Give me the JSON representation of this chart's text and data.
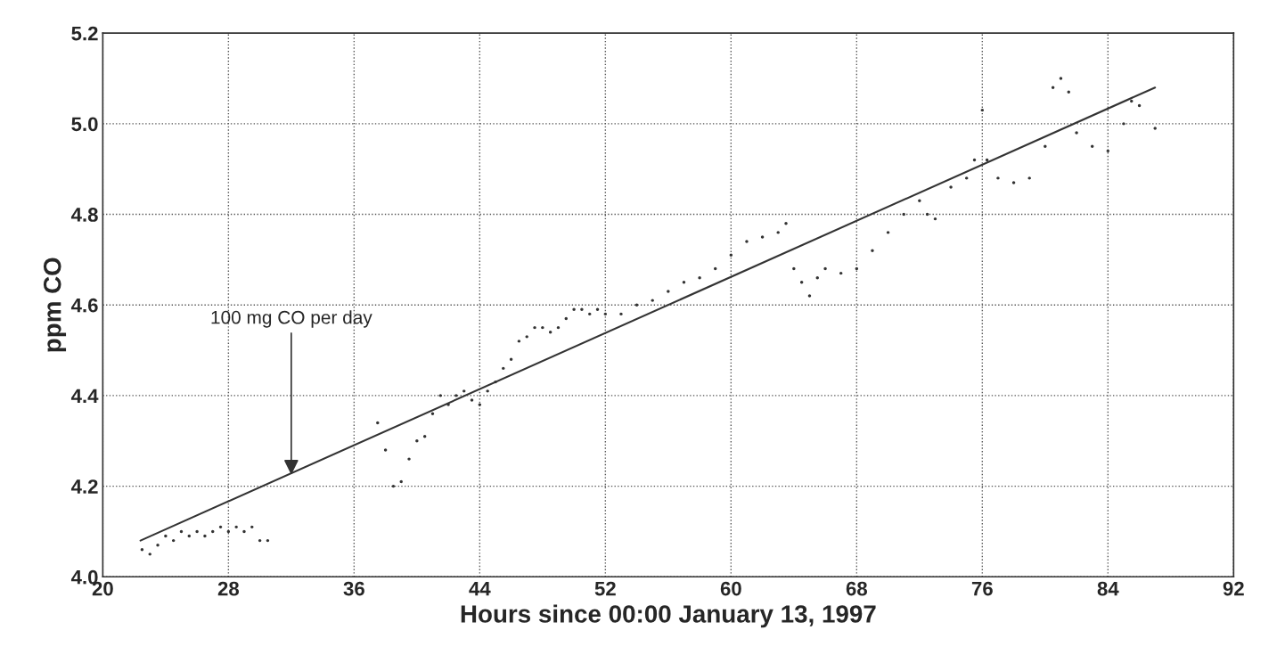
{
  "chart_data": {
    "type": "scatter",
    "xlabel": "Hours since 00:00 January 13, 1997",
    "ylabel": "ppm CO",
    "xlim": [
      20,
      92
    ],
    "xticks": [
      20,
      28,
      36,
      44,
      52,
      60,
      68,
      76,
      84,
      92
    ],
    "ylim": [
      4.0,
      5.2
    ],
    "yticks": [
      {
        "value": 4.0,
        "label": "4.0"
      },
      {
        "value": 4.2,
        "label": "4.2"
      },
      {
        "value": 4.4,
        "label": "4.4"
      },
      {
        "value": 4.6,
        "label": "4.6"
      },
      {
        "value": 4.8,
        "label": "4.8"
      },
      {
        "value": 5.0,
        "label": "5.0"
      },
      {
        "value": 5.2,
        "label": "5.2"
      }
    ],
    "grid": true,
    "annotations": [
      {
        "text": "100 mg CO per day",
        "x": 32,
        "y": 4.22
      }
    ],
    "series": [
      {
        "marker": "circle",
        "color": "#333333",
        "x": [
          22.5,
          23,
          23.5,
          24,
          24.5,
          25,
          25.5,
          26,
          26.5,
          27,
          27.5,
          28,
          28.5,
          29,
          29.5,
          30,
          30.5,
          37.5,
          38,
          38.5,
          39,
          39.5,
          40,
          40.5,
          41,
          41.5,
          42,
          42.5,
          43,
          43.5,
          44,
          44.5,
          45,
          45.5,
          46,
          46.5,
          47,
          47.5,
          48,
          48.5,
          49,
          49.5,
          50,
          50.5,
          51,
          51.5,
          52,
          53,
          54,
          55,
          56,
          57,
          58,
          59,
          60,
          61,
          62,
          63,
          63.5,
          64,
          64.5,
          65,
          65.5,
          66,
          67,
          68,
          69,
          70,
          71,
          72,
          72.5,
          73,
          74,
          75,
          75.5,
          76,
          76.3,
          77,
          78,
          79,
          80,
          80.5,
          81,
          81.5,
          82,
          83,
          84,
          85,
          85.5,
          86,
          87
        ],
        "values": [
          4.06,
          4.05,
          4.07,
          4.09,
          4.08,
          4.1,
          4.09,
          4.1,
          4.09,
          4.1,
          4.11,
          4.1,
          4.11,
          4.1,
          4.11,
          4.08,
          4.08,
          4.34,
          4.28,
          4.2,
          4.21,
          4.26,
          4.3,
          4.31,
          4.36,
          4.4,
          4.38,
          4.4,
          4.41,
          4.39,
          4.38,
          4.41,
          4.43,
          4.46,
          4.48,
          4.52,
          4.53,
          4.55,
          4.55,
          4.54,
          4.55,
          4.57,
          4.59,
          4.59,
          4.58,
          4.59,
          4.58,
          4.58,
          4.6,
          4.61,
          4.63,
          4.65,
          4.66,
          4.68,
          4.71,
          4.74,
          4.75,
          4.76,
          4.78,
          4.68,
          4.65,
          4.62,
          4.66,
          4.68,
          4.67,
          4.68,
          4.72,
          4.76,
          4.8,
          4.83,
          4.8,
          4.79,
          4.86,
          4.88,
          4.92,
          5.03,
          4.92,
          4.88,
          4.87,
          4.88,
          4.95,
          5.08,
          5.1,
          5.07,
          4.98,
          4.95,
          4.94,
          5.0,
          5.05,
          5.04,
          4.99
        ]
      },
      {
        "type": "line",
        "color": "#333333",
        "x": [
          22.4,
          87
        ],
        "values": [
          4.08,
          5.08
        ]
      }
    ]
  }
}
